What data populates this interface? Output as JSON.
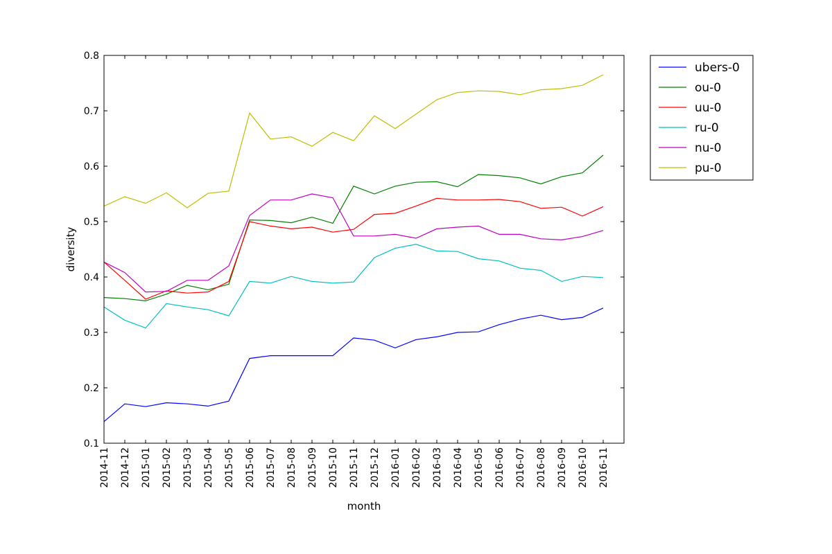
{
  "chart_data": {
    "type": "line",
    "title": "",
    "xlabel": "month",
    "ylabel": "diversity",
    "ylim": [
      0.1,
      0.8
    ],
    "yticks": [
      "0.1",
      "0.2",
      "0.3",
      "0.4",
      "0.5",
      "0.6",
      "0.7",
      "0.8"
    ],
    "grid": false,
    "legend_position": "outside-top-right",
    "categories": [
      "2014-11",
      "2014-12",
      "2015-01",
      "2015-02",
      "2015-03",
      "2015-04",
      "2015-05",
      "2015-06",
      "2015-07",
      "2015-08",
      "2015-09",
      "2015-10",
      "2015-11",
      "2015-12",
      "2016-01",
      "2016-02",
      "2016-03",
      "2016-04",
      "2016-05",
      "2016-06",
      "2016-07",
      "2016-08",
      "2016-09",
      "2016-10",
      "2016-11"
    ],
    "series": [
      {
        "name": "ubers-0",
        "color": "#0000ff",
        "values": [
          0.139,
          0.171,
          0.166,
          0.173,
          0.171,
          0.167,
          0.176,
          0.253,
          0.258,
          0.258,
          0.258,
          0.258,
          0.29,
          0.286,
          0.272,
          0.287,
          0.292,
          0.3,
          0.301,
          0.314,
          0.324,
          0.331,
          0.323,
          0.327,
          0.344
        ]
      },
      {
        "name": "ou-0",
        "color": "#008000",
        "values": [
          0.363,
          0.361,
          0.357,
          0.369,
          0.385,
          0.377,
          0.387,
          0.503,
          0.502,
          0.498,
          0.508,
          0.497,
          0.564,
          0.55,
          0.564,
          0.571,
          0.572,
          0.563,
          0.585,
          0.583,
          0.579,
          0.568,
          0.581,
          0.588,
          0.62
        ]
      },
      {
        "name": "uu-0",
        "color": "#ff0000",
        "values": [
          0.427,
          0.394,
          0.36,
          0.375,
          0.371,
          0.373,
          0.392,
          0.5,
          0.492,
          0.487,
          0.49,
          0.481,
          0.486,
          0.513,
          0.515,
          0.528,
          0.542,
          0.539,
          0.539,
          0.54,
          0.536,
          0.524,
          0.526,
          0.51,
          0.527
        ]
      },
      {
        "name": "ru-0",
        "color": "#00bfbf",
        "values": [
          0.346,
          0.322,
          0.308,
          0.352,
          0.346,
          0.341,
          0.33,
          0.392,
          0.389,
          0.401,
          0.392,
          0.389,
          0.391,
          0.435,
          0.452,
          0.459,
          0.447,
          0.446,
          0.433,
          0.429,
          0.416,
          0.412,
          0.392,
          0.401,
          0.399
        ]
      },
      {
        "name": "nu-0",
        "color": "#bf00bf",
        "values": [
          0.427,
          0.408,
          0.373,
          0.374,
          0.394,
          0.394,
          0.42,
          0.511,
          0.539,
          0.539,
          0.55,
          0.543,
          0.474,
          0.474,
          0.477,
          0.47,
          0.487,
          0.49,
          0.492,
          0.477,
          0.477,
          0.469,
          0.467,
          0.473,
          0.484
        ]
      },
      {
        "name": "pu-0",
        "color": "#bfbf00",
        "values": [
          0.528,
          0.545,
          0.533,
          0.552,
          0.525,
          0.551,
          0.555,
          0.696,
          0.649,
          0.653,
          0.636,
          0.661,
          0.646,
          0.691,
          0.668,
          0.694,
          0.72,
          0.733,
          0.736,
          0.735,
          0.729,
          0.738,
          0.74,
          0.746,
          0.765
        ]
      }
    ]
  }
}
